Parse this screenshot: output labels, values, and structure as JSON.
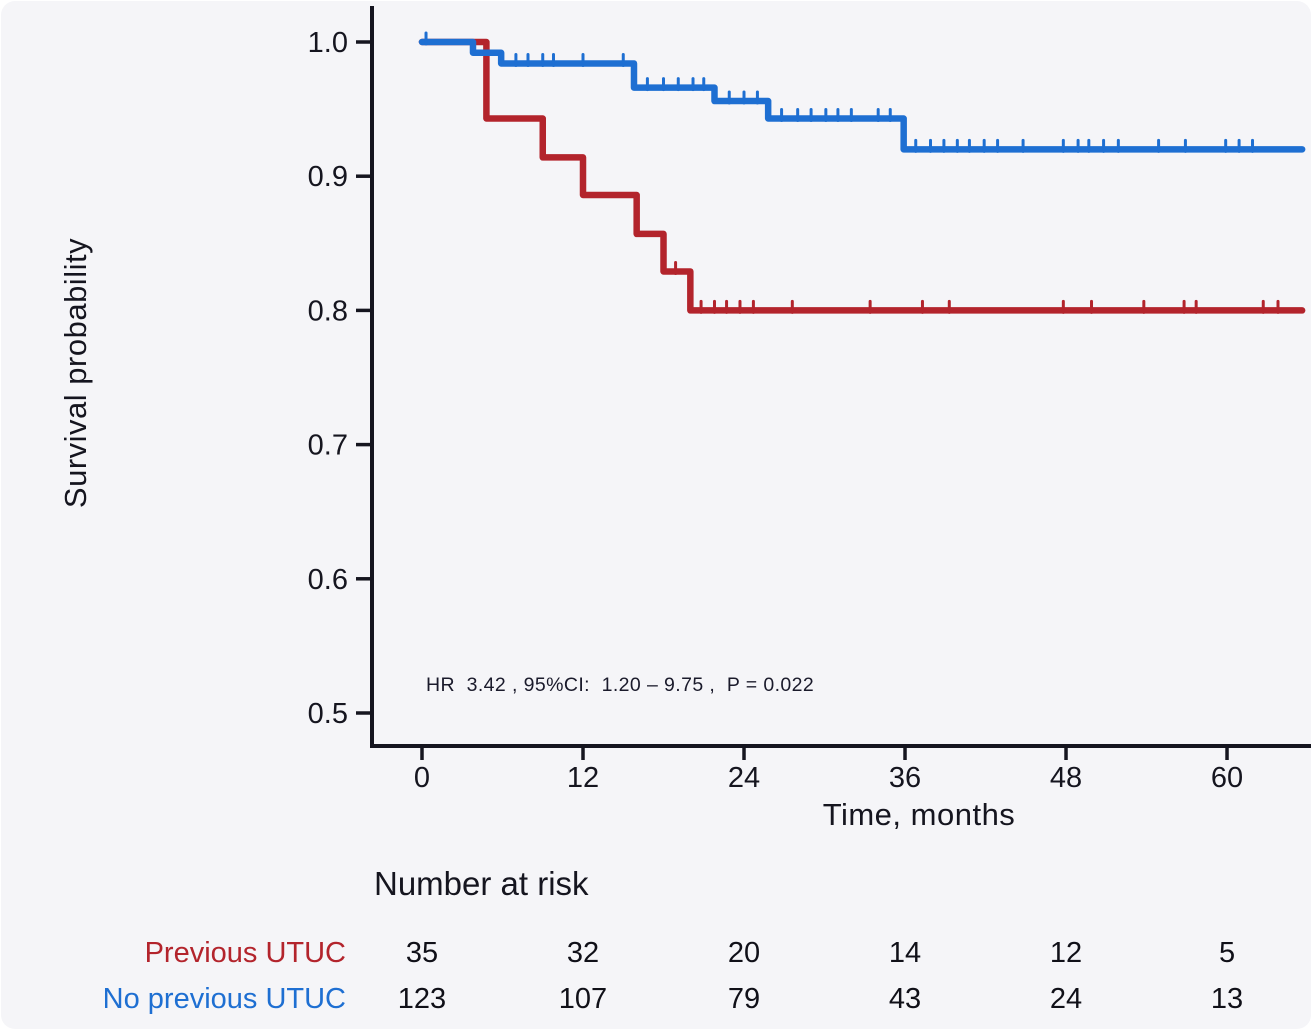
{
  "colors": {
    "background": "#f5f5f8",
    "axis": "#15151f",
    "text": "#15151f",
    "previous_utuc_red": "#b3242c",
    "no_previous_utuc_blue": "#1e6fd2"
  },
  "chart_data": {
    "type": "line",
    "subtype": "kaplan-meier-step",
    "title": "",
    "xlabel": "Time, months",
    "ylabel": "Survival probability",
    "x_ticks": [
      0,
      12,
      24,
      36,
      48,
      60
    ],
    "y_tick_labels": [
      "1.0",
      "0.9",
      "0.8",
      "0.7",
      "0.6",
      "0.5"
    ],
    "xlim": [
      0,
      66
    ],
    "ylim": [
      0.48,
      1.02
    ],
    "grid": false,
    "legend_position": "none",
    "annotation": "HR  3.42 , 95%CI:  1.20 – 9.75 ,  P = 0.022",
    "series": [
      {
        "name": "Previous UTUC",
        "color": "#b3242c",
        "steps": [
          [
            0,
            1.0
          ],
          [
            4.8,
            0.943
          ],
          [
            9,
            0.914
          ],
          [
            12,
            0.886
          ],
          [
            16,
            0.857
          ],
          [
            18,
            0.829
          ],
          [
            20,
            0.8
          ]
        ],
        "end": 65.6,
        "censor_times": [
          18.9,
          20.8,
          21.8,
          22.7,
          23.7,
          24.7,
          27.6,
          33.4,
          37.3,
          39.3,
          47.8,
          49.9,
          53.8,
          56.8,
          57.7,
          62.7,
          63.8
        ]
      },
      {
        "name": "No previous UTUC",
        "color": "#1e6fd2",
        "steps": [
          [
            0,
            1.0
          ],
          [
            3.8,
            0.992
          ],
          [
            5.9,
            0.984
          ],
          [
            15.8,
            0.966
          ],
          [
            21.8,
            0.956
          ],
          [
            25.8,
            0.943
          ],
          [
            35.9,
            0.92
          ]
        ],
        "end": 65.6,
        "censor_times": [
          0.3,
          7,
          7.9,
          9,
          9.8,
          12,
          15,
          16.8,
          18,
          19.1,
          20.2,
          21,
          22.9,
          24,
          25,
          26.8,
          28,
          29,
          30.1,
          31,
          32,
          34,
          34.9,
          36.8,
          37.9,
          38.9,
          39.9,
          40.8,
          41.9,
          42.9,
          44.8,
          47.8,
          48.9,
          49.7,
          50.8,
          51.9,
          54.9,
          56.9,
          59.9,
          60.9,
          61.9
        ]
      }
    ],
    "risk_table": {
      "title": "Number at risk",
      "times": [
        0,
        12,
        24,
        36,
        48,
        60
      ],
      "rows": [
        {
          "label": "Previous UTUC",
          "color": "#b3242c",
          "counts": [
            "35",
            "32",
            "20",
            "14",
            "12",
            "5"
          ]
        },
        {
          "label": "No previous UTUC",
          "color": "#1e6fd2",
          "counts": [
            "123",
            "107",
            "79",
            "43",
            "24",
            "13"
          ]
        }
      ]
    }
  }
}
